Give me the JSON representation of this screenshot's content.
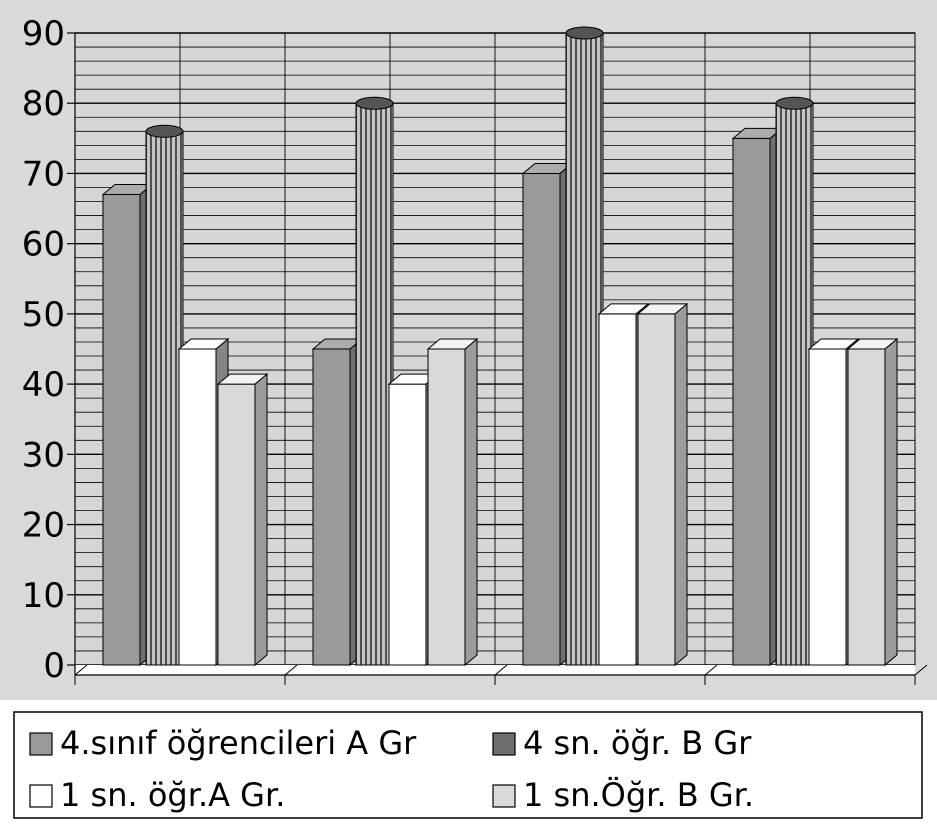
{
  "chart_data": {
    "type": "bar",
    "style": "3d",
    "title": "",
    "xlabel": "",
    "ylabel": "",
    "categories": [
      "",
      "",
      "",
      ""
    ],
    "ylim": [
      0,
      90
    ],
    "yticks": [
      0,
      10,
      20,
      30,
      40,
      50,
      60,
      70,
      80,
      90
    ],
    "grid": true,
    "legend_position": "bottom",
    "series": [
      {
        "name": "4.sınıf öğrencileri A Gr",
        "values": [
          67,
          45,
          70,
          75
        ],
        "color": "#9a9a9a",
        "shape": "box"
      },
      {
        "name": "4 sn. öğr. B Gr",
        "values": [
          76,
          80,
          90,
          80
        ],
        "color": "#8c8c8c",
        "shape": "cylinder"
      },
      {
        "name": "1 sn. öğr.A Gr.",
        "values": [
          45,
          40,
          50,
          45
        ],
        "color": "#ffffff",
        "shape": "box"
      },
      {
        "name": "1 sn.Öğr. B Gr.",
        "values": [
          40,
          45,
          50,
          45
        ],
        "color": "#d9d9d9",
        "shape": "box"
      }
    ],
    "colors": {
      "plot_background": "#d6d6d6",
      "panel_background": "#d9d9d9",
      "gridline": "#000000"
    }
  }
}
